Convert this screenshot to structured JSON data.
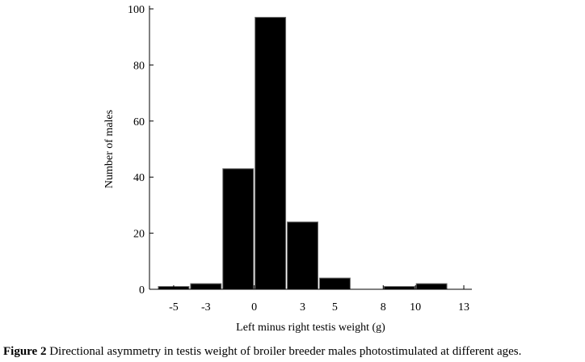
{
  "chart_data": {
    "type": "bar",
    "xlabel": "Left minus right testis weight (g)",
    "ylabel": "Number of males",
    "ylim": [
      0,
      100
    ],
    "xlim": [
      -6.5,
      13.5
    ],
    "yticks": [
      0,
      20,
      40,
      60,
      80,
      100
    ],
    "xticks": [
      -5,
      -3,
      0,
      3,
      5,
      8,
      10,
      13
    ],
    "bin_width": 2,
    "bins": [
      {
        "from": -6,
        "to": -4,
        "value": 1
      },
      {
        "from": -4,
        "to": -2,
        "value": 2
      },
      {
        "from": -2,
        "to": 0,
        "value": 43
      },
      {
        "from": 0,
        "to": 2,
        "value": 97
      },
      {
        "from": 2,
        "to": 4,
        "value": 24
      },
      {
        "from": 4,
        "to": 6,
        "value": 4
      },
      {
        "from": 6,
        "to": 8,
        "value": 0
      },
      {
        "from": 8,
        "to": 10,
        "value": 1
      },
      {
        "from": 10,
        "to": 12,
        "value": 2
      }
    ],
    "bar_color": "#000000",
    "grid": false
  },
  "caption": {
    "label": "Figure 2",
    "text": " Directional asymmetry in testis weight of broiler breeder males photostimulated at different ages."
  }
}
